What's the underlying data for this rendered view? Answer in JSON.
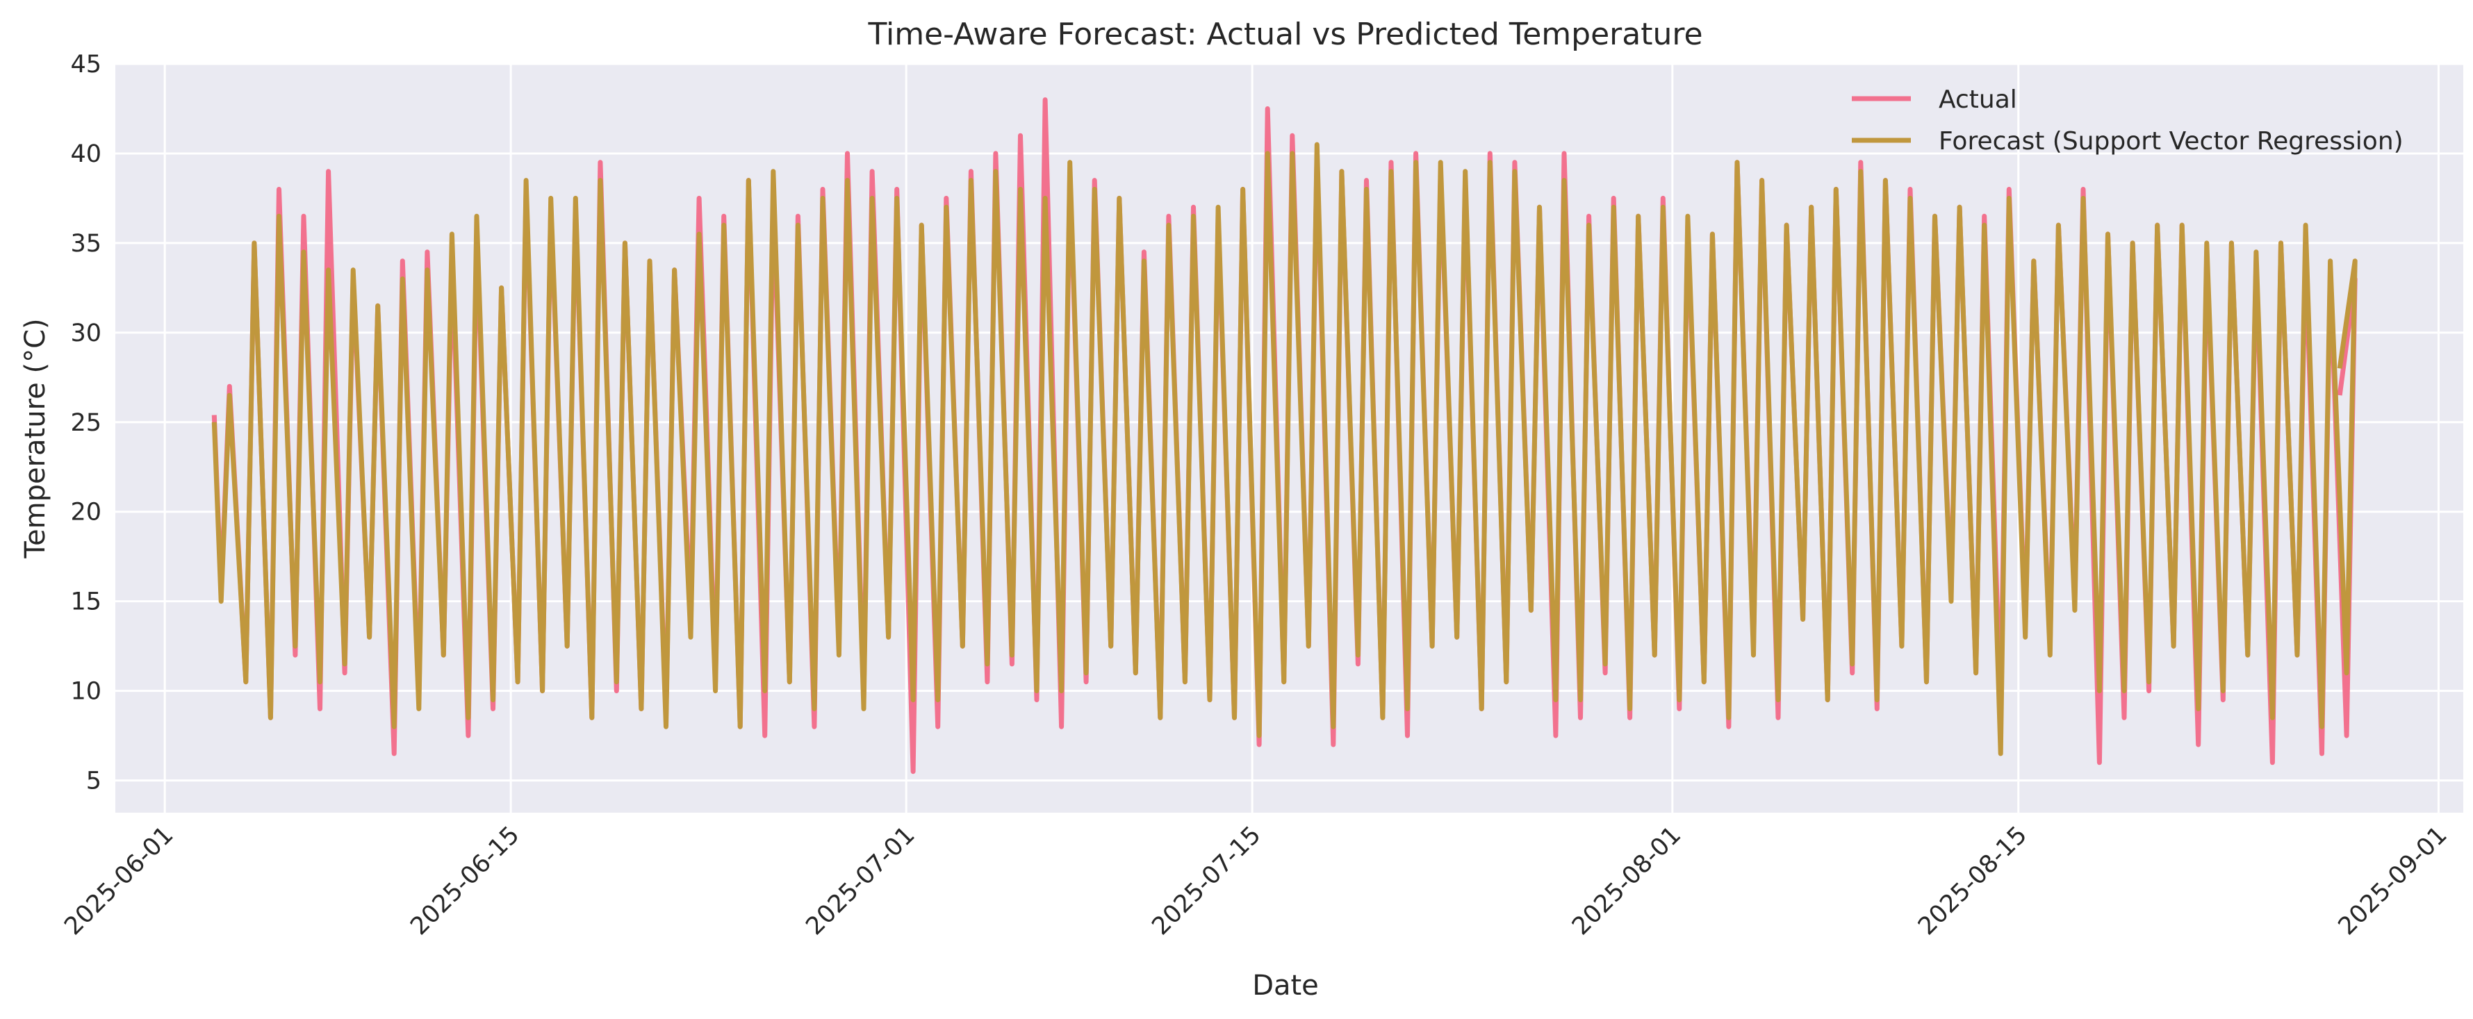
{
  "chart_data": {
    "type": "line",
    "title": "Time-Aware Forecast: Actual vs Predicted Temperature",
    "xlabel": "Date",
    "ylabel": "Temperature (°C)",
    "x_range": [
      "2025-05-30",
      "2025-09-02"
    ],
    "ylim": [
      3.2,
      45
    ],
    "x_ticks": [
      "2025-06-01",
      "2025-06-15",
      "2025-07-01",
      "2025-07-15",
      "2025-08-01",
      "2025-08-15",
      "2025-09-01"
    ],
    "y_ticks": [
      5,
      10,
      15,
      20,
      25,
      30,
      35,
      40,
      45
    ],
    "grid": true,
    "legend_position": "top-right",
    "start_date": "2025-06-03",
    "end_date": "2025-08-28",
    "series": [
      {
        "name": "Actual",
        "color": "#f2718e",
        "daily_min": [
          15.5,
          10.5,
          8.5,
          12.0,
          9.0,
          11.0,
          13.0,
          6.5,
          9.5,
          12.0,
          7.5,
          9.0,
          10.5,
          10.0,
          12.5,
          8.5,
          10.0,
          9.0,
          8.5,
          14.0,
          10.5,
          8.0,
          7.5,
          10.5,
          8.0,
          12.5,
          9.5,
          13.0,
          5.5,
          8.0,
          12.5,
          10.5,
          11.5,
          9.5,
          8.0,
          10.5,
          12.5,
          11.0,
          8.5,
          10.5,
          9.5,
          8.5,
          7.0,
          10.5,
          12.5,
          7.0,
          11.5,
          8.5,
          7.5,
          12.5,
          13.0,
          9.0,
          10.5,
          14.5,
          7.5,
          8.5,
          11.0,
          8.5,
          12.0,
          9.0,
          10.5,
          8.0,
          12.5,
          8.5,
          14.0,
          9.5,
          11.0,
          9.0,
          12.5,
          10.5,
          15.5,
          11.0,
          9.0,
          13.5,
          12.5,
          15.0,
          6.0,
          8.5,
          10.0,
          12.5,
          7.0,
          9.5,
          12.0,
          6.0,
          12.0,
          6.5,
          7.5
        ],
        "daily_max": [
          27.0,
          35.0,
          38.0,
          36.5,
          39.0,
          33.0,
          31.5,
          34.0,
          34.5,
          34.0,
          35.5,
          32.5,
          38.0,
          37.0,
          37.0,
          39.5,
          35.0,
          34.0,
          33.5,
          37.5,
          36.5,
          38.5,
          37.5,
          36.5,
          38.0,
          40.0,
          39.0,
          38.0,
          36.0,
          37.5,
          39.0,
          40.0,
          41.0,
          43.0,
          39.0,
          38.5,
          37.5,
          34.5,
          36.5,
          37.0,
          36.5,
          38.0,
          42.5,
          41.0,
          40.0,
          39.0,
          38.5,
          39.5,
          40.0,
          39.0,
          38.5,
          40.0,
          39.5,
          37.0,
          40.0,
          36.5,
          37.5,
          36.5,
          37.5,
          36.0,
          35.5,
          39.5,
          38.5,
          36.0,
          37.0,
          38.0,
          39.5,
          38.5,
          38.0,
          36.5,
          37.0,
          36.5,
          38.0,
          34.0,
          36.0,
          38.0,
          35.5,
          35.0,
          36.0,
          36.0,
          34.5,
          35.0,
          34.0,
          35.0,
          34.5,
          33.5,
          33.0
        ],
        "first_value": 25.4,
        "last_value": 26.5
      },
      {
        "name": "Forecast (Support Vector Regression)",
        "color": "#c0973d",
        "daily_min": [
          15.0,
          10.5,
          8.5,
          12.5,
          10.5,
          11.5,
          13.0,
          8.0,
          9.0,
          12.0,
          8.5,
          9.5,
          10.5,
          10.0,
          12.5,
          8.5,
          10.5,
          9.0,
          8.0,
          13.0,
          10.0,
          8.0,
          10.0,
          10.5,
          9.0,
          12.0,
          9.0,
          13.0,
          9.5,
          9.5,
          12.5,
          11.5,
          12.0,
          10.0,
          10.0,
          11.0,
          12.5,
          11.0,
          8.5,
          10.5,
          9.5,
          8.5,
          7.5,
          10.5,
          12.5,
          8.0,
          12.0,
          8.5,
          9.0,
          12.5,
          13.0,
          9.0,
          10.5,
          14.5,
          9.5,
          9.5,
          11.5,
          9.0,
          12.0,
          9.5,
          10.5,
          8.5,
          12.0,
          9.5,
          14.0,
          9.5,
          11.5,
          9.5,
          12.5,
          10.5,
          15.0,
          11.0,
          6.5,
          13.0,
          12.0,
          14.5,
          10.0,
          10.0,
          10.5,
          12.5,
          9.0,
          10.0,
          12.0,
          8.5,
          12.0,
          8.0,
          11.0
        ],
        "daily_max": [
          26.5,
          35.0,
          36.5,
          34.5,
          33.5,
          33.5,
          31.5,
          33.0,
          33.5,
          35.5,
          36.5,
          32.5,
          38.5,
          37.5,
          37.5,
          38.5,
          35.0,
          34.0,
          33.5,
          35.5,
          36.0,
          38.5,
          39.0,
          36.0,
          37.5,
          38.5,
          37.5,
          37.5,
          36.0,
          37.0,
          38.5,
          39.0,
          38.0,
          37.5,
          39.5,
          38.0,
          37.5,
          34.0,
          36.0,
          36.5,
          37.0,
          38.0,
          40.0,
          40.0,
          40.5,
          39.0,
          38.0,
          39.0,
          39.5,
          39.5,
          39.0,
          39.5,
          39.0,
          37.0,
          38.5,
          36.0,
          37.0,
          36.5,
          37.0,
          36.5,
          35.5,
          39.5,
          38.5,
          36.0,
          37.0,
          38.0,
          39.0,
          38.5,
          37.5,
          36.5,
          37.0,
          36.0,
          37.5,
          34.0,
          36.0,
          37.5,
          35.5,
          35.0,
          36.0,
          36.0,
          35.0,
          35.0,
          34.5,
          35.0,
          36.0,
          34.0,
          34.0
        ],
        "first_value": 25.0,
        "last_value": 28.0
      }
    ]
  }
}
